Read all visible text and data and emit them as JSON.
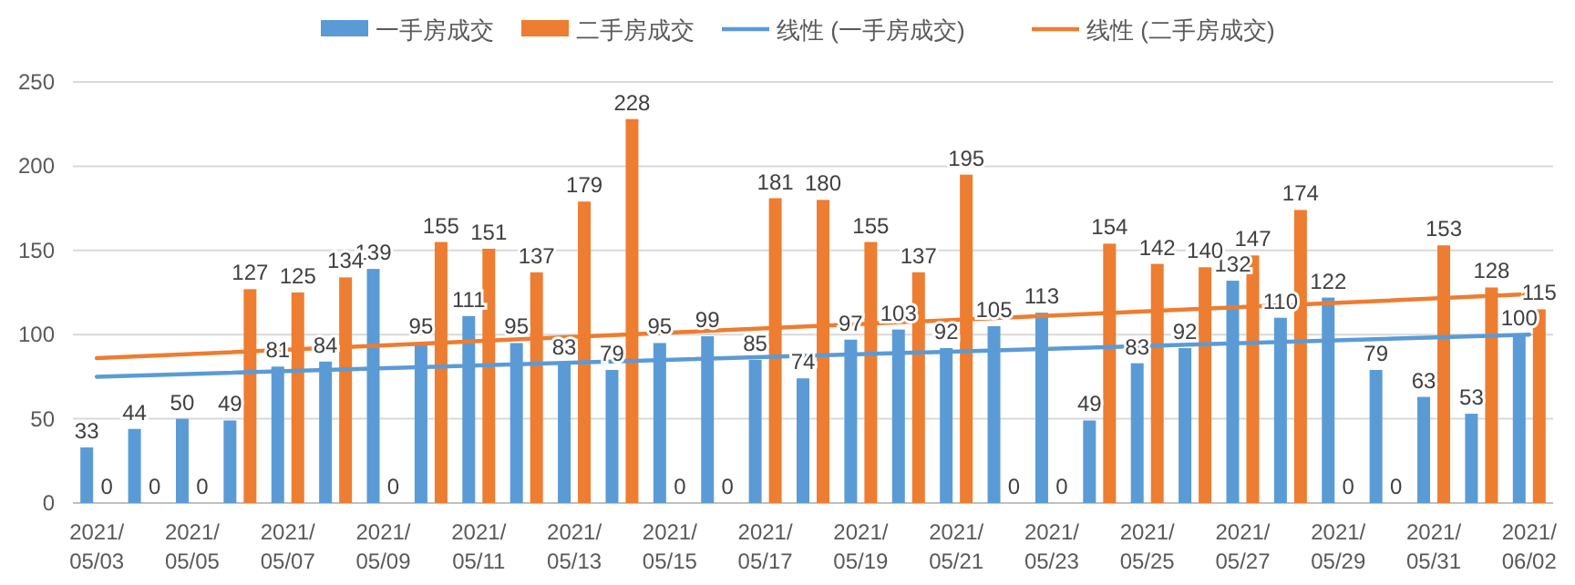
{
  "chart_data": {
    "type": "bar",
    "categories": [
      "2021/\n05/03",
      null,
      "2021/\n05/05",
      null,
      "2021/\n05/07",
      null,
      "2021/\n05/09",
      null,
      "2021/\n05/11",
      null,
      "2021/\n05/13",
      null,
      "2021/\n05/15",
      null,
      "2021/\n05/17",
      null,
      "2021/\n05/19",
      null,
      "2021/\n05/21",
      null,
      "2021/\n05/23",
      null,
      "2021/\n05/25",
      null,
      "2021/\n05/27",
      null,
      "2021/\n05/29",
      null,
      "2021/\n05/31",
      null,
      "2021/\n06/02"
    ],
    "series": [
      {
        "name": "一手房成交",
        "color": "#5b9bd5",
        "values": [
          33,
          44,
          50,
          49,
          81,
          84,
          139,
          95,
          111,
          95,
          83,
          79,
          95,
          99,
          85,
          74,
          97,
          103,
          92,
          105,
          113,
          49,
          83,
          92,
          132,
          110,
          122,
          79,
          63,
          53,
          100
        ],
        "value_labels": [
          "33",
          "44",
          "50",
          "49",
          "81",
          "84",
          "139",
          "95",
          "111",
          "95",
          "83",
          "79",
          "95",
          "99",
          "85",
          "74",
          "97",
          "103",
          "92",
          "105",
          "113",
          "49",
          "83",
          "92",
          "132",
          "110",
          "122",
          "79",
          "63",
          "53",
          "100"
        ]
      },
      {
        "name": "二手房成交",
        "color": "#ed7d31",
        "values": [
          0,
          0,
          0,
          127,
          125,
          134,
          0,
          155,
          151,
          137,
          179,
          228,
          0,
          0,
          181,
          180,
          155,
          137,
          195,
          0,
          0,
          154,
          142,
          140,
          147,
          174,
          0,
          0,
          153,
          128,
          115
        ],
        "value_labels": [
          "0",
          "0",
          "0",
          "127",
          "125",
          "134",
          "0",
          "155",
          "151",
          "137",
          "179",
          "228",
          "0",
          "0",
          "181",
          "180",
          "155",
          "137",
          "195",
          "0",
          "0",
          "154",
          "142",
          "140",
          "147",
          "174",
          "0",
          "0",
          "153",
          "128",
          "115"
        ]
      },
      {
        "name": "线性 (一手房成交)",
        "type": "line",
        "color": "#5b9bd5",
        "values": [
          75,
          null,
          null,
          null,
          null,
          null,
          null,
          null,
          null,
          null,
          null,
          null,
          null,
          null,
          null,
          null,
          null,
          null,
          null,
          null,
          null,
          null,
          null,
          null,
          null,
          null,
          null,
          null,
          null,
          null,
          100
        ]
      },
      {
        "name": "线性 (二手房成交)",
        "type": "line",
        "color": "#ed7d31",
        "values": [
          86,
          null,
          null,
          null,
          null,
          null,
          null,
          null,
          null,
          null,
          null,
          null,
          null,
          null,
          null,
          null,
          null,
          null,
          null,
          null,
          null,
          null,
          null,
          null,
          null,
          null,
          null,
          null,
          null,
          null,
          124
        ]
      }
    ],
    "ylim": [
      0,
      250
    ],
    "yticks": [
      0,
      50,
      100,
      150,
      200,
      250
    ],
    "grid": "y",
    "legend": "top"
  }
}
